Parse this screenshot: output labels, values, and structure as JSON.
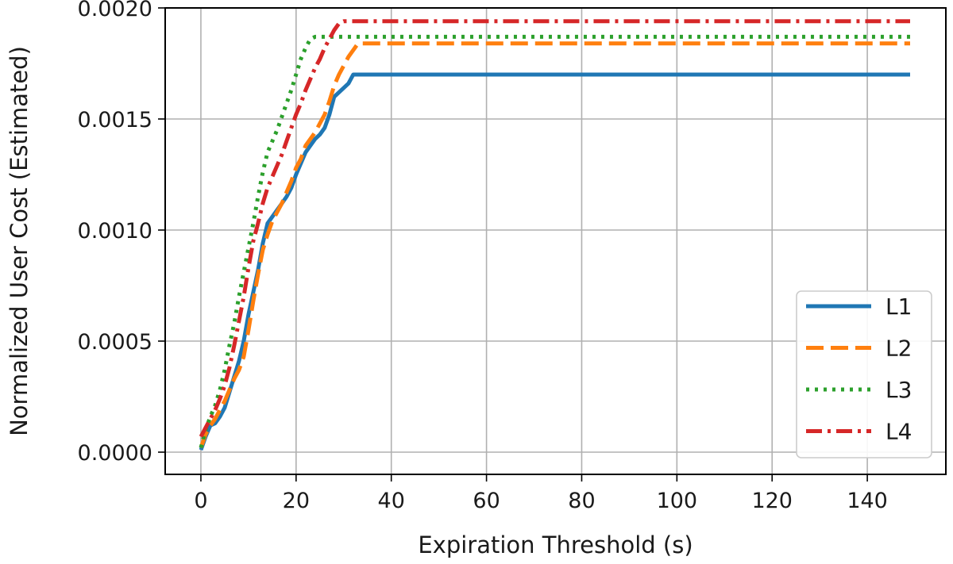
{
  "chart_data": {
    "type": "line",
    "title": "",
    "xlabel": "Expiration Threshold (s)",
    "ylabel": "Normalized User Cost (Estimated)",
    "xlim": [
      -7.5,
      156.5
    ],
    "ylim": [
      -0.0001,
      0.002
    ],
    "xticks": [
      0,
      20,
      40,
      60,
      80,
      100,
      120,
      140
    ],
    "yticks": [
      0.0,
      0.0005,
      0.001,
      0.0015,
      0.002
    ],
    "xtick_labels": [
      "0",
      "20",
      "40",
      "60",
      "80",
      "100",
      "120",
      "140"
    ],
    "ytick_labels": [
      "0.0000",
      "0.0005",
      "0.0010",
      "0.0015",
      "0.0020"
    ],
    "grid": true,
    "legend_position": "lower-right",
    "series": [
      {
        "name": "L1",
        "color": "#1f77b4",
        "style": "solid",
        "x": [
          0,
          1,
          2,
          3,
          4,
          5,
          6,
          7,
          8,
          9,
          10,
          11,
          12,
          13,
          14,
          15,
          16,
          17,
          18,
          19,
          20,
          21,
          22,
          23,
          24,
          25,
          26,
          27,
          28,
          29,
          30,
          31,
          32,
          33,
          149
        ],
        "y": [
          1e-05,
          7e-05,
          0.00012,
          0.00013,
          0.00016,
          0.0002,
          0.00027,
          0.00034,
          0.00041,
          0.0005,
          0.00062,
          0.00072,
          0.00082,
          0.00094,
          0.00103,
          0.00106,
          0.00109,
          0.00112,
          0.00115,
          0.00119,
          0.00125,
          0.0013,
          0.00135,
          0.00138,
          0.00141,
          0.00143,
          0.00146,
          0.00152,
          0.0016,
          0.00162,
          0.00164,
          0.00166,
          0.0017,
          0.0017,
          0.0017
        ]
      },
      {
        "name": "L2",
        "color": "#ff7f0e",
        "style": "dashed",
        "x": [
          0,
          1,
          2,
          3,
          4,
          5,
          6,
          7,
          8,
          9,
          10,
          11,
          12,
          13,
          14,
          15,
          16,
          17,
          18,
          19,
          20,
          21,
          22,
          23,
          24,
          25,
          26,
          27,
          28,
          29,
          30,
          31,
          32,
          33,
          34,
          149
        ],
        "y": [
          2e-05,
          8e-05,
          0.00012,
          0.00015,
          0.00019,
          0.00023,
          0.00028,
          0.00033,
          0.00037,
          0.00043,
          0.00055,
          0.00068,
          0.0008,
          0.00091,
          0.00098,
          0.00104,
          0.00108,
          0.00112,
          0.00117,
          0.00122,
          0.00128,
          0.00132,
          0.00138,
          0.00141,
          0.00144,
          0.00148,
          0.00152,
          0.00158,
          0.00165,
          0.0017,
          0.00174,
          0.00178,
          0.00181,
          0.00184,
          0.00184,
          0.00184
        ]
      },
      {
        "name": "L3",
        "color": "#2ca02c",
        "style": "dotted",
        "x": [
          0,
          1,
          2,
          3,
          4,
          5,
          6,
          7,
          8,
          9,
          10,
          11,
          12,
          13,
          14,
          15,
          16,
          17,
          18,
          19,
          20,
          21,
          22,
          23,
          24,
          149
        ],
        "y": [
          2e-05,
          0.0001,
          0.00016,
          0.00021,
          0.00028,
          0.00037,
          0.00048,
          0.00058,
          0.0007,
          0.00081,
          0.00092,
          0.00103,
          0.00115,
          0.00126,
          0.00135,
          0.0014,
          0.00145,
          0.00151,
          0.00157,
          0.00163,
          0.0017,
          0.00177,
          0.00182,
          0.00186,
          0.00187,
          0.00187
        ]
      },
      {
        "name": "L4",
        "color": "#d62728",
        "style": "dashdot",
        "x": [
          0,
          1,
          2,
          3,
          4,
          5,
          6,
          7,
          8,
          9,
          10,
          11,
          12,
          13,
          14,
          15,
          16,
          17,
          18,
          19,
          20,
          21,
          22,
          23,
          24,
          25,
          26,
          27,
          28,
          29,
          30,
          149
        ],
        "y": [
          7e-05,
          0.00011,
          0.00015,
          0.00019,
          0.00024,
          0.0003,
          0.00038,
          0.00048,
          0.00059,
          0.0007,
          0.00083,
          0.00095,
          0.00103,
          0.00112,
          0.00119,
          0.00124,
          0.00129,
          0.00134,
          0.0014,
          0.00146,
          0.00152,
          0.00157,
          0.00163,
          0.00168,
          0.00173,
          0.00177,
          0.00182,
          0.00186,
          0.0019,
          0.00193,
          0.00194,
          0.00194
        ]
      }
    ]
  }
}
